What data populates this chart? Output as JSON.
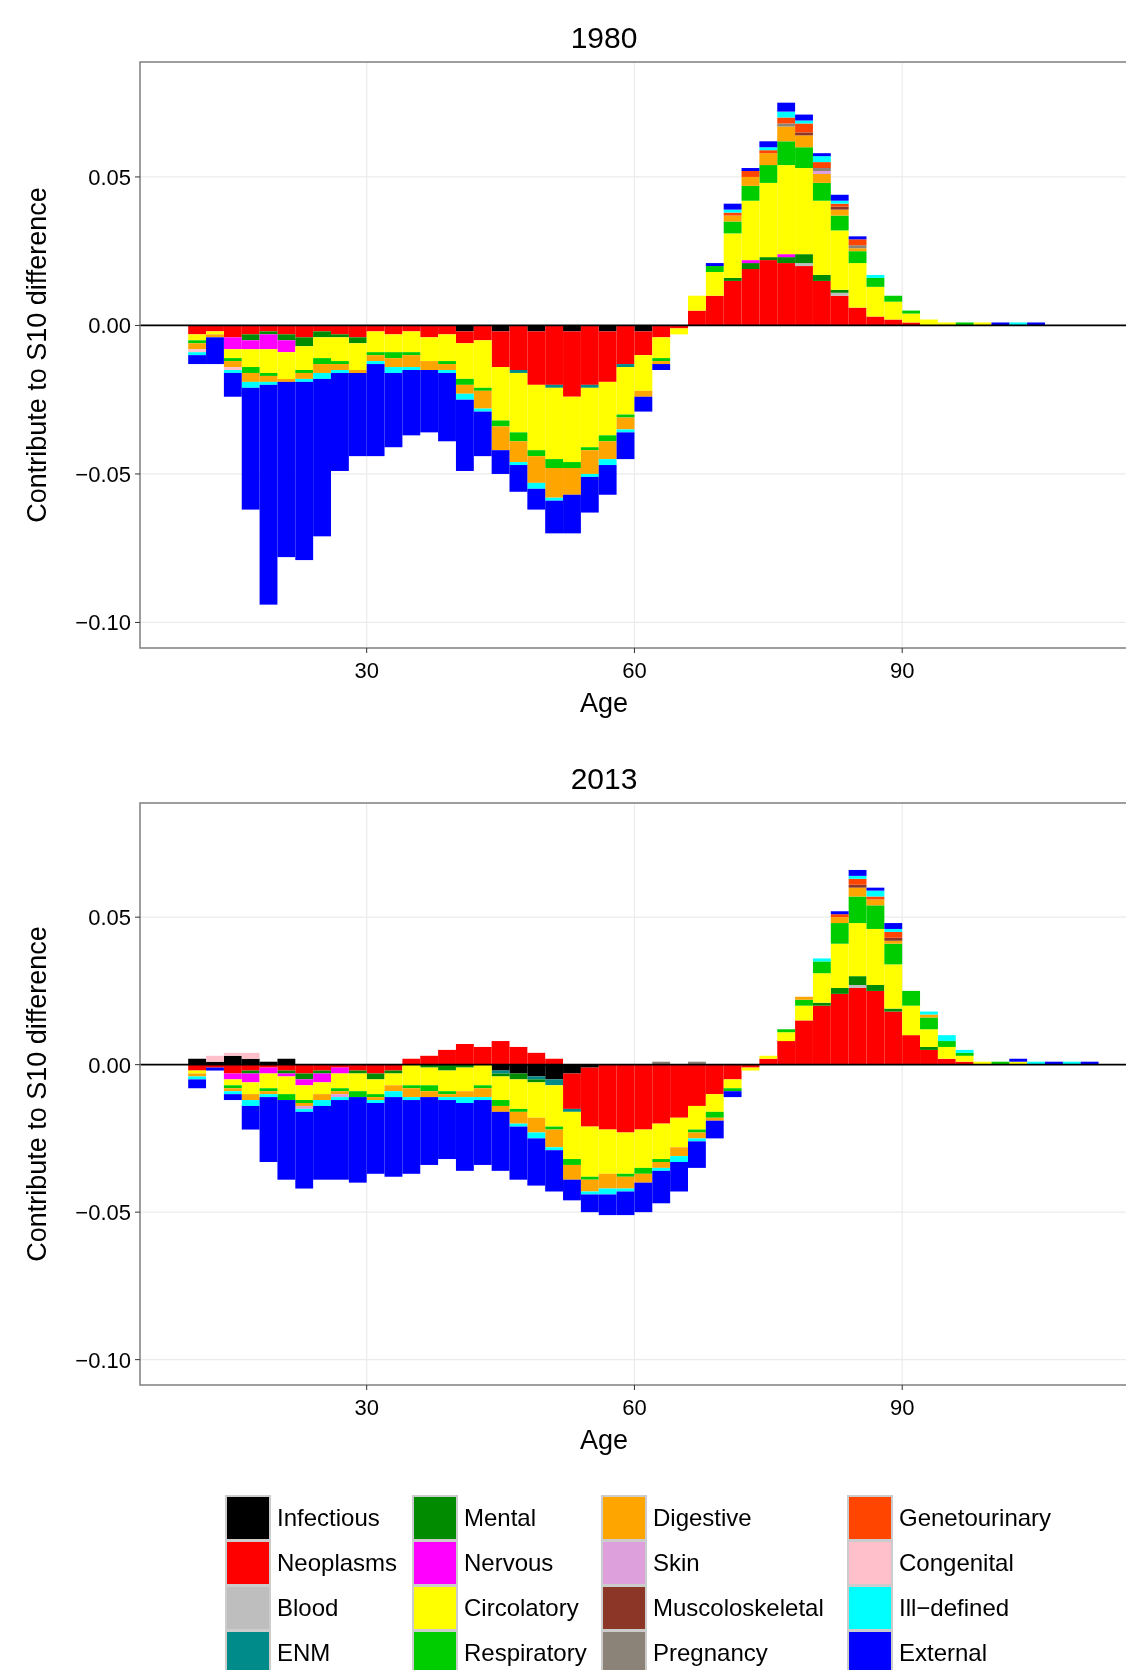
{
  "chart_data": [
    {
      "type": "bar",
      "title": "1980",
      "xlabel": "Age",
      "ylabel": "Contribute to S10 difference",
      "stacked": true,
      "grid": true,
      "legend": false,
      "xlim": [
        4.6,
        115.3
      ],
      "xticks": [
        30,
        60,
        90
      ],
      "ylim": [
        -0.1086,
        0.0887
      ],
      "yticks": [
        {
          "value": -0.1,
          "label": "−0.10"
        },
        {
          "value": -0.05,
          "label": "−0.05"
        },
        {
          "value": 0,
          "label": "0.00"
        },
        {
          "value": 0.05,
          "label": "0.05"
        }
      ],
      "ref_lines": [
        {
          "axis": "y",
          "value": 0,
          "color": "#000000"
        }
      ],
      "x": [
        11,
        13,
        15,
        17,
        19,
        21,
        23,
        25,
        27,
        29,
        31,
        33,
        35,
        37,
        39,
        41,
        43,
        45,
        47,
        49,
        51,
        53,
        55,
        57,
        59,
        61,
        63,
        65,
        67,
        69,
        71,
        73,
        75,
        77,
        79,
        81,
        83,
        85,
        87,
        89,
        91,
        93,
        95,
        97,
        99,
        101,
        103,
        105
      ],
      "series": [
        {
          "color": "#000000",
          "values": [
            0,
            0,
            0,
            0,
            0,
            0,
            0,
            0,
            0,
            0,
            0,
            0,
            0,
            0,
            0,
            -0.002,
            0,
            -0.002,
            0,
            -0.002,
            0,
            -0.002,
            0,
            -0.002,
            0,
            -0.002,
            0,
            0,
            0,
            0,
            0,
            0,
            0,
            0,
            0,
            0,
            0,
            0,
            0,
            0,
            0,
            0,
            0,
            0,
            0,
            0,
            0,
            0
          ]
        },
        {
          "color": "#ff0000",
          "values": [
            -0.003,
            -0.002,
            -0.004,
            -0.003,
            -0.002,
            -0.003,
            -0.004,
            -0.002,
            -0.003,
            -0.004,
            -0.002,
            -0.003,
            -0.002,
            -0.004,
            -0.003,
            -0.004,
            -0.005,
            -0.012,
            -0.015,
            -0.018,
            -0.02,
            -0.022,
            -0.02,
            -0.017,
            -0.013,
            -0.008,
            -0.004,
            -0.001,
            0.005,
            0.01,
            0.015,
            0.019,
            0.022,
            0.021,
            0.02,
            0.015,
            0.01,
            0.006,
            0.003,
            0.002,
            0.001,
            0,
            0,
            0,
            0,
            0,
            0,
            0
          ]
        },
        {
          "color": "#bebebe",
          "values": [
            0,
            0,
            0,
            0,
            0,
            0,
            0,
            0,
            0,
            0,
            0,
            0,
            0,
            0,
            0,
            0,
            0,
            0,
            0,
            0,
            0,
            0,
            0,
            0,
            0,
            0,
            0,
            0,
            0,
            0,
            0,
            0,
            0,
            0,
            0.001,
            0,
            0.001,
            0,
            0,
            0,
            0,
            0,
            0,
            0,
            0,
            0,
            0,
            0
          ]
        },
        {
          "color": "#008b8b",
          "values": [
            0,
            0,
            0,
            0,
            0,
            0,
            0,
            0,
            0,
            0,
            0,
            0,
            0,
            0,
            0,
            0,
            0,
            0,
            -0.001,
            0,
            -0.001,
            0,
            -0.001,
            0,
            -0.001,
            0,
            0,
            0,
            0,
            0,
            0,
            0,
            0,
            0,
            0,
            0,
            0,
            0,
            0,
            0,
            0,
            0,
            0,
            0,
            0,
            0,
            0,
            0
          ]
        },
        {
          "color": "#008b00",
          "values": [
            0,
            0,
            0,
            -0.002,
            -0.001,
            -0.002,
            -0.003,
            -0.002,
            -0.001,
            -0.002,
            0,
            0,
            0,
            0,
            0,
            0,
            0,
            0,
            0,
            0,
            0,
            0,
            0,
            0,
            0,
            0,
            0,
            0,
            0,
            0,
            0.001,
            0.002,
            0.001,
            0.002,
            0.003,
            0.002,
            0.001,
            0,
            0,
            0,
            0,
            0,
            0,
            0,
            0,
            0,
            0,
            0
          ]
        },
        {
          "color": "#ff00ff",
          "values": [
            0,
            0,
            -0.004,
            -0.003,
            -0.005,
            -0.004,
            0,
            0,
            0,
            0,
            0,
            0,
            0,
            0,
            0,
            0,
            0,
            0,
            0,
            0,
            0,
            0,
            0,
            0,
            0,
            0,
            0,
            0,
            0,
            0,
            0,
            0.001,
            0,
            0.001,
            0,
            0,
            0,
            0,
            0,
            0,
            0,
            0,
            0,
            0,
            0,
            0,
            0,
            0
          ]
        },
        {
          "color": "#ffff00",
          "values": [
            -0.002,
            -0.001,
            -0.003,
            -0.006,
            -0.008,
            -0.009,
            -0.008,
            -0.007,
            -0.008,
            -0.009,
            -0.007,
            -0.006,
            -0.007,
            -0.008,
            -0.009,
            -0.012,
            -0.016,
            -0.018,
            -0.02,
            -0.022,
            -0.024,
            -0.022,
            -0.02,
            -0.018,
            -0.016,
            -0.012,
            -0.007,
            -0.002,
            0.005,
            0.008,
            0.015,
            0.02,
            0.025,
            0.03,
            0.029,
            0.025,
            0.02,
            0.015,
            0.01,
            0.006,
            0.003,
            0.002,
            0.001,
            0,
            0.001,
            0,
            0,
            0
          ]
        },
        {
          "color": "#00cd00",
          "values": [
            -0.001,
            0,
            -0.001,
            -0.002,
            -0.001,
            0,
            -0.001,
            -0.002,
            -0.001,
            0,
            -0.001,
            -0.002,
            -0.001,
            0,
            -0.001,
            -0.002,
            -0.001,
            -0.002,
            -0.003,
            -0.002,
            -0.003,
            -0.002,
            -0.001,
            -0.002,
            -0.001,
            0,
            -0.001,
            0,
            0,
            0.002,
            0.004,
            0.005,
            0.006,
            0.008,
            0.007,
            0.006,
            0.005,
            0.004,
            0.003,
            0.002,
            0.001,
            0,
            0,
            0.001,
            0,
            0,
            0,
            0
          ]
        },
        {
          "color": "#ffa500",
          "values": [
            -0.002,
            -0.001,
            -0.002,
            -0.003,
            -0.002,
            -0.001,
            -0.002,
            -0.003,
            -0.002,
            -0.001,
            -0.002,
            -0.003,
            -0.004,
            -0.003,
            -0.002,
            -0.003,
            -0.006,
            -0.008,
            -0.007,
            -0.009,
            -0.01,
            -0.009,
            -0.008,
            -0.006,
            -0.004,
            -0.002,
            -0.001,
            0,
            0,
            0,
            0.002,
            0.003,
            0.004,
            0.005,
            0.004,
            0.003,
            0.002,
            0.001,
            0,
            0,
            0,
            0,
            0,
            0,
            0,
            0,
            0,
            0
          ]
        },
        {
          "color": "#dda0dd",
          "values": [
            0,
            0,
            0,
            0,
            0,
            0,
            0,
            0,
            0,
            0,
            0,
            0,
            0,
            0,
            0,
            0,
            0,
            0,
            0,
            0,
            0,
            0,
            0,
            0,
            0,
            0,
            0,
            0,
            0,
            0,
            0,
            0,
            0,
            0,
            0,
            0.001,
            0,
            0,
            0,
            0,
            0,
            0,
            0,
            0,
            0,
            0,
            0,
            0
          ]
        },
        {
          "color": "#8b3626",
          "values": [
            0,
            0,
            0,
            0,
            0,
            0,
            0,
            0,
            0,
            0,
            0,
            0,
            0,
            0,
            0,
            0,
            0,
            0,
            0,
            0,
            0,
            0,
            0,
            0,
            0,
            0,
            0,
            0,
            0,
            0,
            0,
            0,
            0,
            0,
            0.001,
            0,
            0.001,
            0,
            0,
            0,
            0,
            0,
            0,
            0,
            0,
            0,
            0,
            0
          ]
        },
        {
          "color": "#8b8378",
          "values": [
            0,
            0,
            0,
            0,
            0,
            0,
            0,
            0,
            0,
            0,
            0,
            0,
            0,
            0,
            0,
            0,
            0,
            0,
            0,
            0,
            0,
            0,
            0,
            0,
            0,
            0,
            0,
            0,
            0,
            0,
            0,
            0,
            0,
            0.001,
            0,
            0.001,
            0,
            0.001,
            0,
            0,
            0,
            0,
            0,
            0,
            0,
            0,
            0,
            0
          ]
        },
        {
          "color": "#ff4500",
          "values": [
            0,
            0,
            0,
            0,
            0,
            0,
            0,
            0,
            0,
            0,
            0,
            0,
            0,
            0,
            0,
            0,
            0,
            0,
            0,
            0,
            0,
            0,
            0,
            0,
            0,
            0,
            0,
            0,
            0,
            0,
            0.001,
            0.002,
            0.001,
            0.002,
            0.003,
            0.002,
            0.001,
            0.002,
            0,
            0,
            0,
            0,
            0,
            0,
            0,
            0,
            0,
            0
          ]
        },
        {
          "color": "#ffc0cb",
          "values": [
            -0.001,
            0,
            -0.001,
            0,
            0,
            0,
            0,
            0,
            0,
            0,
            0,
            0,
            0,
            0,
            0,
            0,
            0,
            0,
            0,
            0,
            0,
            0,
            0,
            0,
            0,
            0,
            0,
            0,
            0,
            0,
            0,
            0,
            0,
            0,
            0,
            0,
            0,
            0,
            0,
            0,
            0,
            0,
            0,
            0,
            0,
            0,
            0,
            0
          ]
        },
        {
          "color": "#00ffff",
          "values": [
            -0.001,
            0,
            -0.001,
            -0.002,
            -0.001,
            0,
            -0.001,
            -0.002,
            -0.001,
            0,
            -0.001,
            -0.002,
            -0.001,
            0,
            -0.001,
            -0.002,
            -0.001,
            0,
            -0.001,
            -0.002,
            -0.001,
            0,
            -0.001,
            -0.002,
            -0.001,
            0,
            0,
            0,
            0,
            0,
            0.001,
            0,
            0.001,
            0.002,
            0.001,
            0.002,
            0.001,
            0,
            0.001,
            0,
            0,
            0,
            0,
            0,
            0,
            0,
            0.001,
            0
          ]
        },
        {
          "color": "#0000ff",
          "values": [
            -0.003,
            -0.009,
            -0.008,
            -0.041,
            -0.074,
            -0.059,
            -0.06,
            -0.053,
            -0.033,
            -0.028,
            -0.031,
            -0.025,
            -0.022,
            -0.021,
            -0.023,
            -0.024,
            -0.015,
            -0.008,
            -0.009,
            -0.007,
            -0.011,
            -0.013,
            -0.012,
            -0.01,
            -0.009,
            -0.005,
            -0.002,
            0,
            0,
            0.001,
            0.002,
            0.001,
            0.002,
            0.003,
            0.002,
            0.001,
            0.002,
            0.001,
            0,
            0,
            0,
            0,
            0,
            0,
            0,
            0.001,
            0,
            0.001
          ]
        }
      ]
    },
    {
      "type": "bar",
      "title": "2013",
      "xlabel": "Age",
      "ylabel": "Contribute to S10 difference",
      "stacked": true,
      "grid": true,
      "legend": "bottom",
      "xlim": [
        4.6,
        115.3
      ],
      "xticks": [
        30,
        60,
        90
      ],
      "ylim": [
        -0.1086,
        0.0887
      ],
      "yticks": [
        {
          "value": -0.1,
          "label": "−0.10"
        },
        {
          "value": -0.05,
          "label": "−0.05"
        },
        {
          "value": 0,
          "label": "0.00"
        },
        {
          "value": 0.05,
          "label": "0.05"
        }
      ],
      "ref_lines": [
        {
          "axis": "y",
          "value": 0,
          "color": "#000000"
        }
      ],
      "x": [
        11,
        13,
        15,
        17,
        19,
        21,
        23,
        25,
        27,
        29,
        31,
        33,
        35,
        37,
        39,
        41,
        43,
        45,
        47,
        49,
        51,
        53,
        55,
        57,
        59,
        61,
        63,
        65,
        67,
        69,
        71,
        73,
        75,
        77,
        79,
        81,
        83,
        85,
        87,
        89,
        91,
        93,
        95,
        97,
        99,
        101,
        103,
        105,
        107,
        109,
        111
      ],
      "series": [
        {
          "name": "Infectious",
          "color": "#000000",
          "values": [
            0.002,
            0.001,
            0.003,
            0.002,
            0.001,
            0.002,
            0,
            0,
            0,
            0,
            0,
            0,
            0,
            0,
            0,
            0,
            0,
            -0.002,
            -0.003,
            -0.004,
            -0.005,
            -0.003,
            -0.001,
            0,
            0,
            0,
            0,
            0,
            0,
            0,
            0,
            0,
            0,
            0,
            0,
            0,
            0,
            0,
            0,
            0,
            0,
            0,
            0,
            0,
            0,
            0,
            0,
            0,
            0,
            0,
            0
          ]
        },
        {
          "name": "Neoplasms",
          "color": "#ff0000",
          "values": [
            -0.002,
            -0.001,
            -0.003,
            -0.002,
            -0.001,
            -0.002,
            -0.003,
            -0.002,
            -0.001,
            -0.002,
            -0.003,
            -0.002,
            0.002,
            0.003,
            0.005,
            0.007,
            0.006,
            0.008,
            0.006,
            0.004,
            0.002,
            -0.012,
            -0.02,
            -0.022,
            -0.023,
            -0.022,
            -0.02,
            -0.018,
            -0.014,
            -0.01,
            -0.005,
            -0.001,
            0.002,
            0.008,
            0.015,
            0.02,
            0.024,
            0.026,
            0.025,
            0.018,
            0.01,
            0.005,
            0.002,
            0.001,
            0,
            0,
            0,
            0,
            0,
            0,
            0
          ]
        },
        {
          "name": "Blood",
          "color": "#bebebe",
          "values": [
            0,
            0,
            0,
            0,
            0,
            0,
            0,
            0,
            0,
            0,
            0,
            0,
            0,
            0,
            0,
            0,
            0,
            0,
            0,
            0,
            0,
            0,
            0,
            0,
            0,
            0,
            0,
            0,
            0,
            0,
            0,
            0,
            0,
            0,
            0,
            0,
            0,
            0.001,
            0,
            0,
            0,
            0,
            0,
            0,
            0,
            0,
            0,
            0,
            0,
            0,
            0
          ]
        },
        {
          "name": "ENM",
          "color": "#008b8b",
          "values": [
            0,
            0,
            0,
            0,
            0,
            0,
            0,
            0,
            0,
            0,
            0,
            0,
            0,
            0,
            0,
            0,
            0,
            -0.001,
            0,
            -0.001,
            -0.002,
            -0.001,
            0,
            0,
            0,
            0,
            0,
            0,
            0,
            0,
            0,
            0,
            0,
            0,
            0,
            0,
            0,
            0,
            0,
            0,
            0,
            0,
            0,
            0,
            0,
            0,
            0,
            0,
            0,
            0,
            0
          ]
        },
        {
          "name": "Mental",
          "color": "#008b00",
          "values": [
            0,
            0,
            0,
            -0.001,
            0,
            -0.001,
            -0.002,
            -0.001,
            0,
            -0.001,
            -0.002,
            -0.001,
            0,
            -0.001,
            -0.002,
            -0.001,
            0,
            -0.001,
            -0.002,
            -0.001,
            0,
            0,
            0,
            0,
            0,
            0,
            0,
            0,
            0,
            0,
            0,
            0,
            0,
            0,
            0,
            0.001,
            0.002,
            0.003,
            0.002,
            0.001,
            0,
            0.001,
            0,
            0,
            0,
            0,
            0,
            0,
            0,
            0,
            0
          ]
        },
        {
          "name": "Nervous",
          "color": "#ff00ff",
          "values": [
            0,
            0,
            -0.002,
            -0.003,
            -0.002,
            -0.001,
            -0.002,
            -0.003,
            -0.002,
            0,
            0,
            0,
            0,
            0,
            0,
            0,
            0,
            0,
            0,
            0,
            0,
            0,
            0,
            0,
            0,
            0,
            0,
            0,
            0,
            0,
            0,
            0,
            0,
            0,
            0,
            0,
            0,
            0,
            0,
            0,
            0,
            0,
            0,
            0,
            0,
            0,
            0,
            0,
            0,
            0,
            0
          ]
        },
        {
          "name": "Circolatory",
          "color": "#ffff00",
          "values": [
            -0.001,
            0,
            -0.002,
            -0.004,
            -0.005,
            -0.006,
            -0.005,
            -0.004,
            -0.005,
            -0.006,
            -0.005,
            -0.004,
            -0.007,
            -0.006,
            -0.007,
            -0.008,
            -0.007,
            -0.008,
            -0.01,
            -0.012,
            -0.014,
            -0.016,
            -0.017,
            -0.015,
            -0.014,
            -0.013,
            -0.012,
            -0.01,
            -0.008,
            -0.006,
            -0.003,
            -0.001,
            0.001,
            0.003,
            0.005,
            0.01,
            0.015,
            0.018,
            0.019,
            0.015,
            0.01,
            0.006,
            0.004,
            0.002,
            0.001,
            0,
            0.001,
            0,
            0,
            0,
            0
          ]
        },
        {
          "name": "Respiratory",
          "color": "#00cd00",
          "values": [
            0,
            0,
            -0.001,
            0,
            -0.001,
            -0.002,
            -0.001,
            0,
            -0.001,
            -0.002,
            -0.001,
            0,
            -0.001,
            -0.002,
            -0.001,
            0,
            -0.001,
            -0.002,
            -0.001,
            0,
            -0.001,
            -0.002,
            -0.001,
            0,
            -0.001,
            -0.002,
            -0.001,
            0,
            -0.001,
            -0.002,
            -0.001,
            0,
            0,
            0.001,
            0.002,
            0.004,
            0.007,
            0.009,
            0.008,
            0.007,
            0.005,
            0.004,
            0.002,
            0.001,
            0,
            0.001,
            0,
            0,
            0,
            0,
            0
          ]
        },
        {
          "name": "Digestive",
          "color": "#ffa500",
          "values": [
            -0.001,
            0,
            -0.001,
            -0.002,
            -0.001,
            0,
            -0.001,
            -0.002,
            -0.001,
            0,
            -0.001,
            -0.002,
            -0.003,
            -0.002,
            -0.001,
            -0.002,
            -0.003,
            -0.002,
            -0.004,
            -0.005,
            -0.006,
            -0.005,
            -0.004,
            -0.005,
            -0.004,
            -0.003,
            -0.002,
            -0.003,
            -0.002,
            -0.001,
            0,
            0,
            0,
            0,
            0.001,
            0,
            0.002,
            0.003,
            0.002,
            0.001,
            0,
            0.001,
            0,
            0,
            0,
            0,
            0,
            0,
            0,
            0,
            0
          ]
        },
        {
          "name": "Skin",
          "color": "#dda0dd",
          "values": [
            0,
            0,
            0,
            0,
            0,
            0,
            -0.001,
            0,
            -0.001,
            0,
            0,
            0,
            0,
            0,
            0,
            0,
            0,
            0,
            0,
            0,
            0,
            0,
            0,
            0,
            0,
            0,
            0,
            0,
            0,
            0,
            0,
            0,
            0,
            0,
            0,
            0,
            0,
            0,
            0,
            0,
            0,
            0,
            0,
            0,
            0,
            0,
            0,
            0,
            0,
            0,
            0
          ]
        },
        {
          "name": "Muscoloskeletal",
          "color": "#8b3626",
          "values": [
            0,
            0,
            0,
            0,
            0,
            0,
            0,
            0,
            0,
            0,
            0,
            0,
            0,
            0,
            0,
            0,
            0,
            0,
            0,
            0,
            0,
            0,
            0,
            0,
            0,
            0,
            0,
            0,
            0,
            0,
            0,
            0,
            0,
            0,
            0,
            0,
            0,
            0.001,
            0,
            0.001,
            0,
            0,
            0,
            0,
            0,
            0,
            0,
            0,
            0,
            0,
            0
          ]
        },
        {
          "name": "Pregnancy",
          "color": "#8b8378",
          "values": [
            0,
            0,
            0,
            0,
            0,
            0,
            0,
            0,
            0,
            0,
            0,
            0,
            0,
            0,
            0,
            0,
            0,
            0,
            0,
            0,
            0,
            0,
            0,
            0,
            0,
            0,
            0.001,
            0,
            0.001,
            0,
            0,
            0,
            0,
            0,
            0,
            0,
            0,
            0,
            0,
            0,
            0,
            0,
            0,
            0,
            0,
            0,
            0,
            0,
            0,
            0,
            0
          ]
        },
        {
          "name": "Genetourinary",
          "color": "#ff4500",
          "values": [
            0,
            0,
            0,
            0,
            0,
            0,
            0,
            0,
            0,
            0,
            0,
            0,
            0,
            0,
            0,
            0,
            0,
            0,
            0,
            0,
            0,
            0,
            0,
            0,
            0,
            0,
            0,
            0,
            0,
            0,
            0,
            0,
            0,
            0,
            0,
            0,
            0.001,
            0.002,
            0.001,
            0.002,
            0,
            0,
            0,
            0,
            0,
            0,
            0,
            0,
            0,
            0,
            0
          ]
        },
        {
          "name": "Congenital",
          "color": "#ffc0cb",
          "values": [
            0,
            0.002,
            0.001,
            0.002,
            0,
            0,
            0,
            0,
            0,
            0,
            0,
            0,
            0,
            0,
            0,
            0,
            0,
            0,
            0,
            0,
            0,
            0,
            0,
            0,
            0,
            0,
            0,
            0,
            0,
            0,
            0,
            0,
            0,
            0,
            0,
            0,
            0,
            0,
            0,
            0,
            0,
            0,
            0,
            0,
            0,
            0,
            0,
            0,
            0,
            0,
            0
          ]
        },
        {
          "name": "Ill−defined",
          "color": "#00ffff",
          "values": [
            -0.001,
            0,
            -0.001,
            -0.002,
            -0.001,
            0,
            -0.001,
            -0.002,
            -0.001,
            0,
            -0.001,
            -0.002,
            -0.001,
            0,
            -0.001,
            -0.002,
            -0.001,
            0,
            -0.001,
            -0.002,
            -0.001,
            0,
            -0.001,
            -0.002,
            -0.001,
            0,
            -0.001,
            -0.002,
            -0.001,
            0,
            0,
            0,
            0,
            0,
            0,
            0.001,
            0,
            0.001,
            0.002,
            0.001,
            0,
            0.001,
            0.002,
            0.001,
            0,
            0,
            0,
            0.001,
            0,
            0.001,
            0
          ]
        },
        {
          "name": "External",
          "color": "#0000ff",
          "values": [
            -0.003,
            -0.001,
            -0.002,
            -0.008,
            -0.022,
            -0.027,
            -0.026,
            -0.025,
            -0.027,
            -0.029,
            -0.024,
            -0.027,
            -0.025,
            -0.023,
            -0.02,
            -0.023,
            -0.022,
            -0.02,
            -0.018,
            -0.016,
            -0.014,
            -0.007,
            -0.006,
            -0.007,
            -0.008,
            -0.01,
            -0.011,
            -0.01,
            -0.009,
            -0.006,
            -0.002,
            0,
            0,
            0,
            0,
            0,
            0.001,
            0.002,
            0.001,
            0.002,
            0,
            0,
            0,
            0,
            0,
            0,
            0.001,
            0,
            0.001,
            0,
            0.001
          ]
        }
      ]
    }
  ]
}
